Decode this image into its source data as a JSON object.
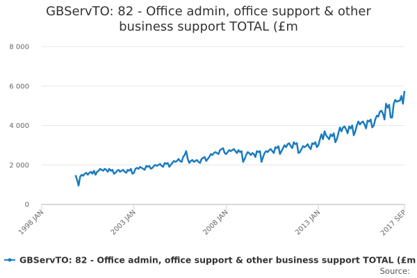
{
  "chart_data": {
    "type": "line",
    "title": "GBServTO: 82 - Office admin, office support & other business support TOTAL (£m",
    "source": "Source:",
    "xlim": [
      "1998 JAN",
      "2017 SEP"
    ],
    "xticks": [
      "1998 JAN",
      "2003 JAN",
      "2008 JAN",
      "2013 JAN",
      "2017 SEP"
    ],
    "ylim": [
      0,
      8000
    ],
    "yticks": [
      0,
      {
        "value": 2000,
        "label": "2 000"
      },
      {
        "value": 4000,
        "label": "4 000"
      },
      {
        "value": 6000,
        "label": "6 000"
      },
      {
        "value": 8000,
        "label": "8 000"
      }
    ],
    "grid": true,
    "legend": "bottom",
    "x": [
      "1999 NOV",
      "1999 DEC",
      "2000 JAN",
      "2000 FEB",
      "2000 MAR",
      "2000 APR",
      "2000 MAY",
      "2000 JUN",
      "2000 JUL",
      "2000 AUG",
      "2000 SEP",
      "2000 OCT",
      "2000 NOV",
      "2000 DEC",
      "2001 JAN",
      "2001 FEB",
      "2001 MAR",
      "2001 APR",
      "2001 MAY",
      "2001 JUN",
      "2001 JUL",
      "2001 AUG",
      "2001 SEP",
      "2001 OCT",
      "2001 NOV",
      "2001 DEC",
      "2002 JAN",
      "2002 FEB",
      "2002 MAR",
      "2002 APR",
      "2002 MAY",
      "2002 JUN",
      "2002 JUL",
      "2002 AUG",
      "2002 SEP",
      "2002 OCT",
      "2002 NOV",
      "2002 DEC",
      "2003 JAN",
      "2003 FEB",
      "2003 MAR",
      "2003 APR",
      "2003 MAY",
      "2003 JUN",
      "2003 JUL",
      "2003 AUG",
      "2003 SEP",
      "2003 OCT",
      "2003 NOV",
      "2003 DEC",
      "2004 JAN",
      "2004 FEB",
      "2004 MAR",
      "2004 APR",
      "2004 MAY",
      "2004 JUN",
      "2004 JUL",
      "2004 AUG",
      "2004 SEP",
      "2004 OCT",
      "2004 NOV",
      "2004 DEC",
      "2005 JAN",
      "2005 FEB",
      "2005 MAR",
      "2005 APR",
      "2005 MAY",
      "2005 JUN",
      "2005 JUL",
      "2005 AUG",
      "2005 SEP",
      "2005 OCT",
      "2005 NOV",
      "2005 DEC",
      "2006 JAN",
      "2006 FEB",
      "2006 MAR",
      "2006 APR",
      "2006 MAY",
      "2006 JUN",
      "2006 JUL",
      "2006 AUG",
      "2006 SEP",
      "2006 OCT",
      "2006 NOV",
      "2006 DEC",
      "2007 JAN",
      "2007 FEB",
      "2007 MAR",
      "2007 APR",
      "2007 MAY",
      "2007 JUN",
      "2007 JUL",
      "2007 AUG",
      "2007 SEP",
      "2007 OCT",
      "2007 NOV",
      "2007 DEC",
      "2008 JAN",
      "2008 FEB",
      "2008 MAR",
      "2008 APR",
      "2008 MAY",
      "2008 JUN",
      "2008 JUL",
      "2008 AUG",
      "2008 SEP",
      "2008 OCT",
      "2008 NOV",
      "2008 DEC",
      "2009 JAN",
      "2009 FEB",
      "2009 MAR",
      "2009 APR",
      "2009 MAY",
      "2009 JUN",
      "2009 JUL",
      "2009 AUG",
      "2009 SEP",
      "2009 OCT",
      "2009 NOV",
      "2009 DEC",
      "2010 JAN",
      "2010 FEB",
      "2010 MAR",
      "2010 APR",
      "2010 MAY",
      "2010 JUN",
      "2010 JUL",
      "2010 AUG",
      "2010 SEP",
      "2010 OCT",
      "2010 NOV",
      "2010 DEC",
      "2011 JAN",
      "2011 FEB",
      "2011 MAR",
      "2011 APR",
      "2011 MAY",
      "2011 JUN",
      "2011 JUL",
      "2011 AUG",
      "2011 SEP",
      "2011 OCT",
      "2011 NOV",
      "2011 DEC",
      "2012 JAN",
      "2012 FEB",
      "2012 MAR",
      "2012 APR",
      "2012 MAY",
      "2012 JUN",
      "2012 JUL",
      "2012 AUG",
      "2012 SEP",
      "2012 OCT",
      "2012 NOV",
      "2012 DEC",
      "2013 JAN",
      "2013 FEB",
      "2013 MAR",
      "2013 APR",
      "2013 MAY",
      "2013 JUN",
      "2013 JUL",
      "2013 AUG",
      "2013 SEP",
      "2013 OCT",
      "2013 NOV",
      "2013 DEC",
      "2014 JAN",
      "2014 FEB",
      "2014 MAR",
      "2014 APR",
      "2014 MAY",
      "2014 JUN",
      "2014 JUL",
      "2014 AUG",
      "2014 SEP",
      "2014 OCT",
      "2014 NOV",
      "2014 DEC",
      "2015 JAN",
      "2015 FEB",
      "2015 MAR",
      "2015 APR",
      "2015 MAY",
      "2015 JUN",
      "2015 JUL",
      "2015 AUG",
      "2015 SEP",
      "2015 OCT",
      "2015 NOV",
      "2015 DEC",
      "2016 JAN",
      "2016 FEB",
      "2016 MAR",
      "2016 APR",
      "2016 MAY",
      "2016 JUN",
      "2016 JUL",
      "2016 AUG",
      "2016 SEP",
      "2016 OCT",
      "2016 NOV",
      "2016 DEC",
      "2017 JAN",
      "2017 FEB",
      "2017 MAR",
      "2017 APR",
      "2017 MAY",
      "2017 JUN",
      "2017 JUL",
      "2017 AUG",
      "2017 SEP"
    ],
    "series": [
      {
        "name": "GBServTO: 82 - Office admin, office support & other business support TOTAL (£m",
        "color": "#1a7bbf",
        "values": [
          1480,
          1250,
          950,
          1400,
          1500,
          1450,
          1550,
          1600,
          1500,
          1600,
          1650,
          1550,
          1700,
          1500,
          1650,
          1700,
          1800,
          1750,
          1700,
          1800,
          1750,
          1650,
          1800,
          1700,
          1750,
          1550,
          1600,
          1700,
          1750,
          1650,
          1700,
          1750,
          1650,
          1600,
          1750,
          1700,
          1800,
          1550,
          1600,
          1800,
          1850,
          1800,
          1900,
          1850,
          1800,
          1750,
          1950,
          1900,
          1950,
          1800,
          1850,
          1950,
          2000,
          1950,
          2000,
          2050,
          1950,
          1900,
          2100,
          2050,
          2100,
          1900,
          2000,
          2100,
          2200,
          2150,
          2200,
          2300,
          2200,
          2150,
          2400,
          2500,
          2700,
          2300,
          2100,
          2200,
          2250,
          2150,
          2200,
          2250,
          2150,
          2100,
          2300,
          2350,
          2400,
          2200,
          2300,
          2400,
          2550,
          2500,
          2600,
          2650,
          2600,
          2550,
          2750,
          2800,
          2850,
          2600,
          2550,
          2650,
          2750,
          2700,
          2750,
          2800,
          2700,
          2600,
          2750,
          2650,
          2700,
          2150,
          2300,
          2500,
          2650,
          2600,
          2500,
          2600,
          2550,
          2400,
          2700,
          2650,
          2700,
          2150,
          2400,
          2600,
          2700,
          2650,
          2750,
          2800,
          2700,
          2600,
          2900,
          2850,
          2950,
          2550,
          2700,
          2850,
          3000,
          2900,
          3050,
          3100,
          2950,
          2850,
          3150,
          3050,
          3100,
          2600,
          2650,
          2800,
          2950,
          2900,
          2950,
          3050,
          2900,
          2800,
          3100,
          3050,
          3150,
          2900,
          3000,
          3300,
          3550,
          3300,
          3700,
          3500,
          3400,
          3300,
          3550,
          3450,
          3600,
          3150,
          3300,
          3600,
          3900,
          3700,
          3900,
          3950,
          3800,
          3600,
          3950,
          3850,
          4000,
          3500,
          3700,
          4000,
          4200,
          4050,
          4150,
          4200,
          4050,
          3850,
          4250,
          4200,
          4300,
          3900,
          4000,
          4300,
          4500,
          4450,
          4700,
          4750,
          4600,
          4300,
          5100,
          4900,
          5050,
          4400,
          4400,
          5100,
          5300,
          5200,
          5250,
          5250,
          5500,
          5100,
          5750
        ]
      }
    ]
  }
}
